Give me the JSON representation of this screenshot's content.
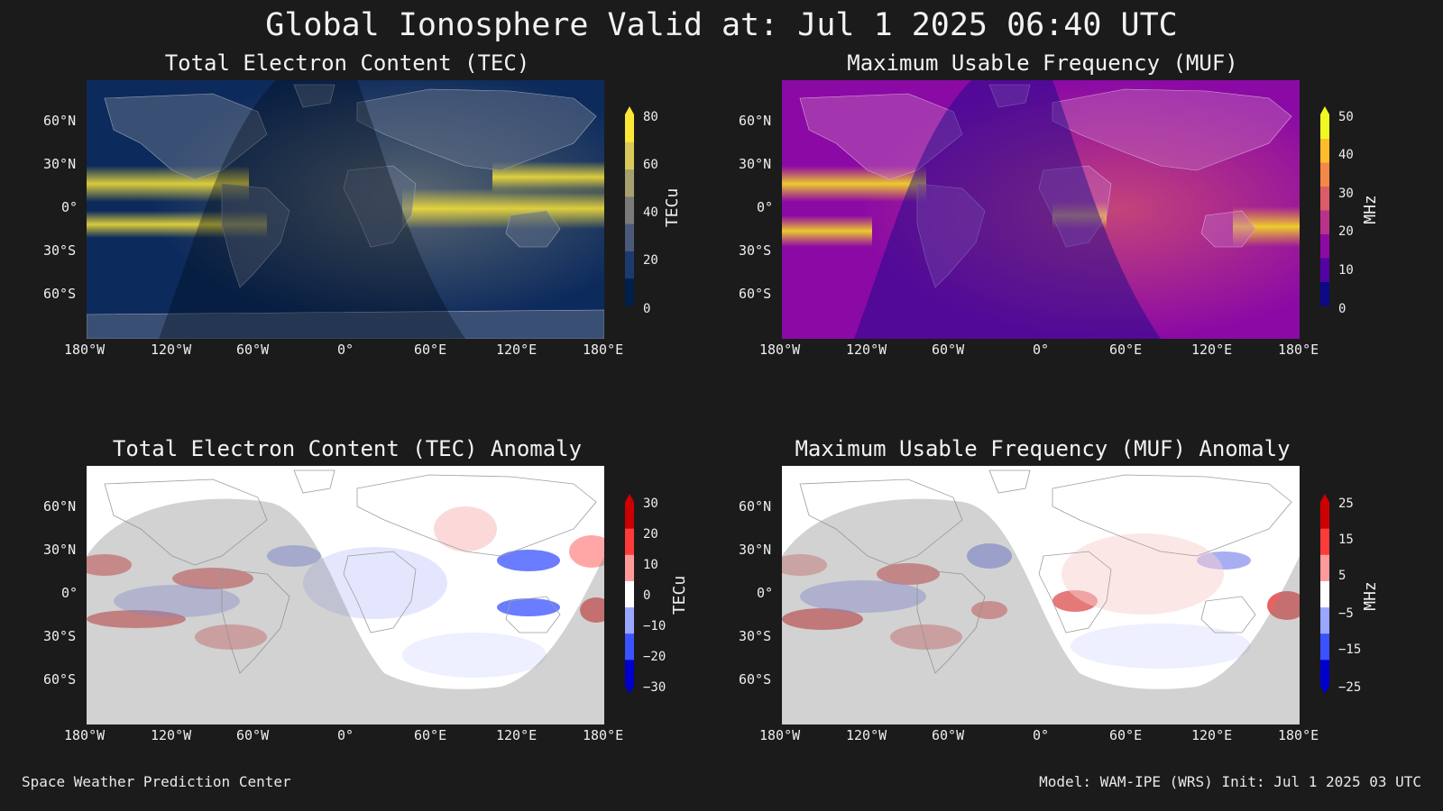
{
  "title": "Global Ionosphere Valid at: Jul 1 2025 06:40 UTC",
  "footer": {
    "left": "Space Weather Prediction Center",
    "right": "Model: WAM-IPE (WRS) Init: Jul 1 2025 03 UTC"
  },
  "axes": {
    "lat_ticks": [
      "60°N",
      "30°N",
      "0°",
      "30°S",
      "60°S"
    ],
    "lon_ticks": [
      "180°W",
      "120°W",
      "60°W",
      "0°",
      "60°E",
      "120°E",
      "180°E"
    ]
  },
  "panels": [
    {
      "title": "Total Electron Content (TEC)",
      "colorbar": {
        "label": "TECu",
        "ticks": [
          "80",
          "60",
          "40",
          "20",
          "0"
        ],
        "range": [
          0,
          80
        ],
        "colors": [
          "#00204c",
          "#1d3a6e",
          "#4b5a78",
          "#7a7b78",
          "#a7a070",
          "#d9c95a",
          "#fde737"
        ]
      }
    },
    {
      "title": "Maximum Usable Frequency (MUF)",
      "colorbar": {
        "label": "MHz",
        "ticks": [
          "50",
          "40",
          "30",
          "20",
          "10",
          "0"
        ],
        "range": [
          0,
          50
        ],
        "colors": [
          "#0d0887",
          "#5302a3",
          "#8b0aa5",
          "#b83289",
          "#db5c68",
          "#f48849",
          "#febd2a",
          "#f0f921"
        ]
      }
    },
    {
      "title": "Total Electron Content (TEC) Anomaly",
      "colorbar": {
        "label": "TECu",
        "ticks": [
          "30",
          "20",
          "10",
          "0",
          "−10",
          "−20",
          "−30"
        ],
        "range": [
          -30,
          30
        ],
        "colors": [
          "#0000cc",
          "#3a52ff",
          "#9aa6ff",
          "#ffffff",
          "#ff9a9a",
          "#ff3a3a",
          "#cc0000"
        ]
      }
    },
    {
      "title": "Maximum Usable Frequency (MUF) Anomaly",
      "colorbar": {
        "label": "MHz",
        "ticks": [
          "25",
          "15",
          "5",
          "−5",
          "−15",
          "−25"
        ],
        "range": [
          -25,
          25
        ],
        "colors": [
          "#0000cc",
          "#3a52ff",
          "#9aa6ff",
          "#ffffff",
          "#ff9a9a",
          "#ff3a3a",
          "#cc0000"
        ]
      }
    }
  ]
}
